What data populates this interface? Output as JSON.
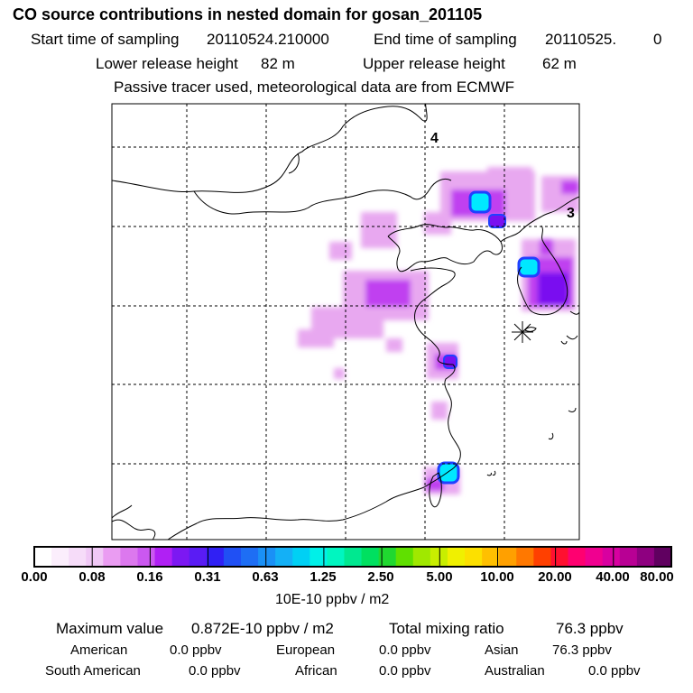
{
  "header": {
    "title": "CO  source contributions in nested domain for gosan_201105",
    "start_label": "Start time of sampling",
    "start_value": "20110524.210000",
    "end_label": "End time of sampling",
    "end_value": "20110525.",
    "end_zero": "0",
    "lower_label": "Lower release height",
    "lower_value": "82 m",
    "upper_label": "Upper release height",
    "upper_value": "62 m",
    "tracer_note": "Passive tracer used, meteorological data are from ECMWF"
  },
  "map": {
    "grid_labels": [
      "4",
      "3"
    ],
    "receptor_marker": "receptor-star",
    "plume_color_light": "#e8a8f0",
    "plume_color_mid": "#c040f0",
    "plume_color_dark": "#7a10f0",
    "hotspot_color": "#00e8ff",
    "hotspot_edge": "#2040ff"
  },
  "colorbar": {
    "colors": [
      "#ffffff",
      "#fbeefc",
      "#f6dcf9",
      "#f0c8f6",
      "#ea9cf2",
      "#dc78ee",
      "#cb58f0",
      "#b020f4",
      "#7c18f2",
      "#5a1cf4",
      "#3020f4",
      "#2050f4",
      "#1e6ef4",
      "#1a90f6",
      "#14b0f6",
      "#00d0f4",
      "#00f0e8",
      "#00f6c0",
      "#00e890",
      "#00e060",
      "#20d830",
      "#60e000",
      "#a0e800",
      "#c8ee00",
      "#f0f000",
      "#fce000",
      "#ffc000",
      "#ffa000",
      "#ff7800",
      "#ff4000",
      "#ff1030",
      "#ff0070",
      "#f00090",
      "#d800a0",
      "#b80094",
      "#8e0080",
      "#600060"
    ],
    "ticks": [
      "0.00",
      "0.08",
      "0.16",
      "0.31",
      "0.63",
      "1.25",
      "2.50",
      "5.00",
      "10.00",
      "20.00",
      "40.00",
      "80.00"
    ],
    "units": "10E-10 ppbv / m2"
  },
  "summary": {
    "max_label": "Maximum value",
    "max_value": "0.872E-10 ppbv / m2",
    "total_label": "Total mixing ratio",
    "total_value": "76.3 ppbv",
    "regions": [
      {
        "name": "American",
        "value": "0.0 ppbv"
      },
      {
        "name": "European",
        "value": "0.0 ppbv"
      },
      {
        "name": "Asian",
        "value": "76.3 ppbv"
      },
      {
        "name": "South American",
        "value": "0.0 ppbv"
      },
      {
        "name": "African",
        "value": "0.0 ppbv"
      },
      {
        "name": "Australian",
        "value": "0.0 ppbv"
      }
    ]
  }
}
